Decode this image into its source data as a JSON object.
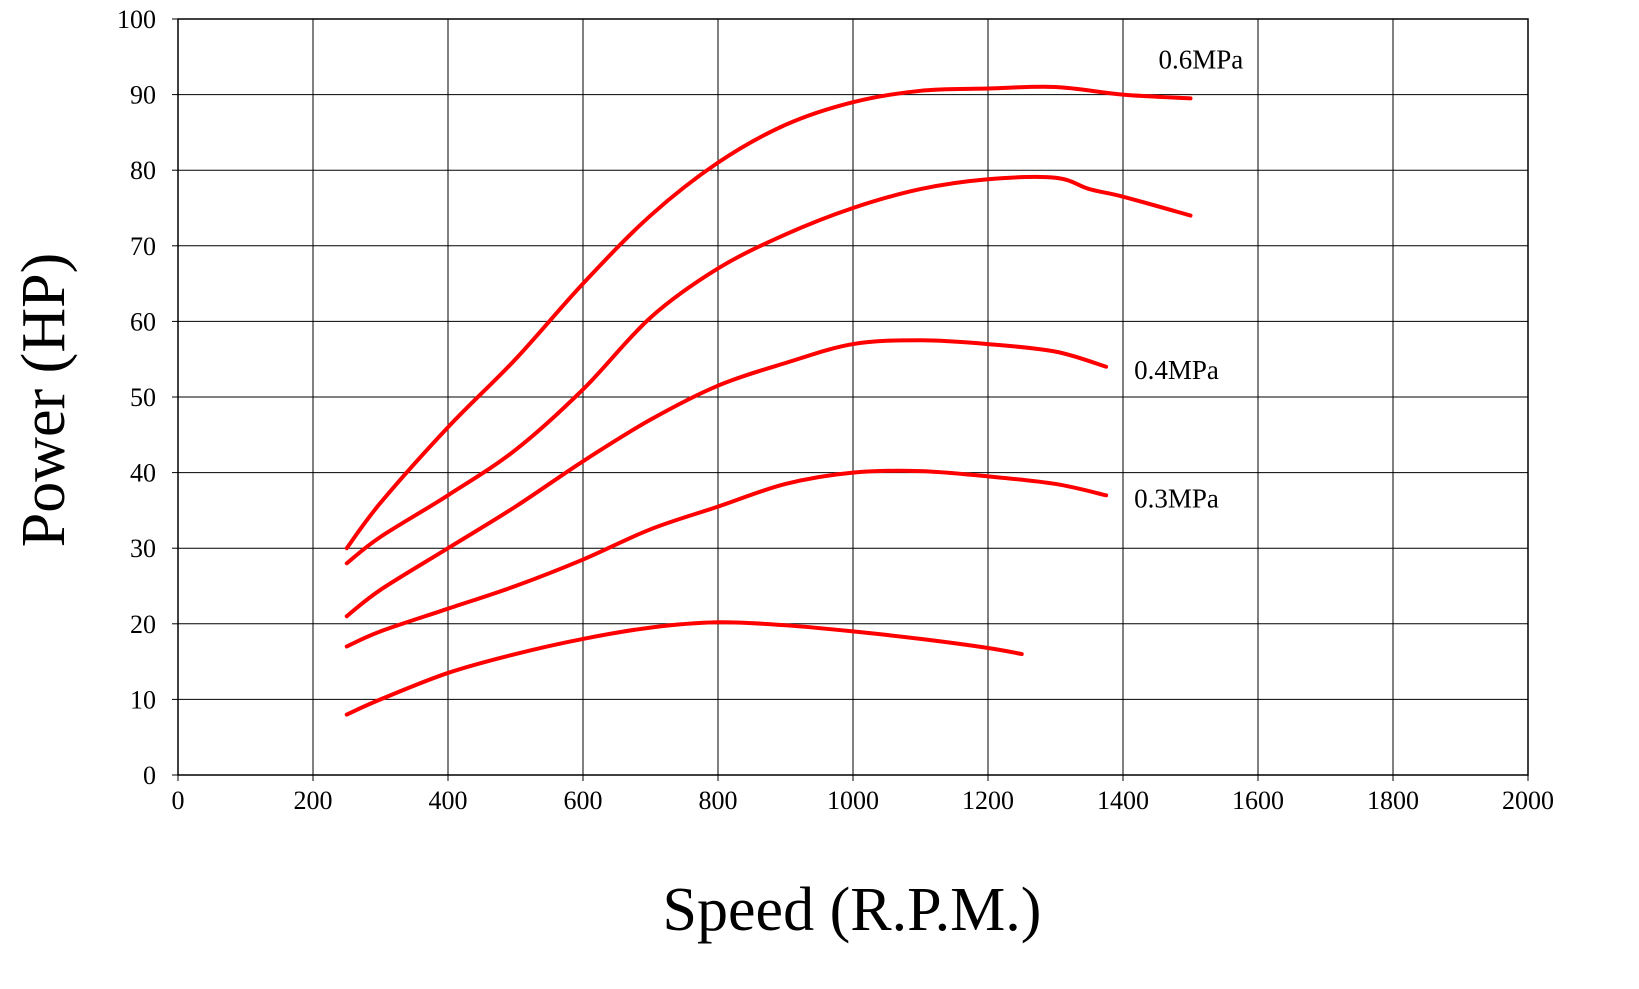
{
  "chart_data": {
    "type": "line",
    "title": "",
    "xlabel": "Speed (R.P.M.)",
    "ylabel": "Power (HP)",
    "xlim": [
      0,
      2000
    ],
    "ylim": [
      0,
      100
    ],
    "xticks": [
      "0",
      "200",
      "400",
      "600",
      "800",
      "1000",
      "1200",
      "1400",
      "1600",
      "1800",
      "2000"
    ],
    "yticks": [
      "0",
      "10",
      "20",
      "30",
      "40",
      "50",
      "60",
      "70",
      "80",
      "90",
      "100"
    ],
    "grid": true,
    "line_color": "#ff0000",
    "series": [
      {
        "label": "0.6MPa",
        "x": [
          250,
          300,
          400,
          500,
          600,
          700,
          800,
          900,
          1000,
          1100,
          1200,
          1300,
          1400,
          1500
        ],
        "y": [
          30,
          36,
          46,
          55,
          65,
          74,
          81,
          86,
          89,
          90.5,
          90.8,
          91,
          90,
          89.5
        ]
      },
      {
        "label": "",
        "x": [
          250,
          300,
          400,
          500,
          600,
          700,
          800,
          900,
          1000,
          1100,
          1200,
          1300,
          1350,
          1400,
          1500
        ],
        "y": [
          28,
          31.5,
          37,
          43,
          51,
          60.5,
          67,
          71.5,
          75,
          77.5,
          78.8,
          79,
          77.5,
          76.5,
          74
        ]
      },
      {
        "label": "0.4MPa",
        "x": [
          250,
          300,
          400,
          500,
          600,
          700,
          800,
          900,
          1000,
          1100,
          1200,
          1300,
          1375
        ],
        "y": [
          21,
          24.5,
          30,
          35.5,
          41.5,
          47,
          51.5,
          54.5,
          57,
          57.5,
          57,
          56,
          54
        ]
      },
      {
        "label": "0.3MPa",
        "x": [
          250,
          300,
          400,
          500,
          600,
          700,
          800,
          900,
          1000,
          1100,
          1200,
          1300,
          1375
        ],
        "y": [
          17,
          19,
          22,
          25,
          28.5,
          32.5,
          35.5,
          38.5,
          40,
          40.2,
          39.5,
          38.5,
          37
        ]
      },
      {
        "label": "",
        "x": [
          250,
          300,
          400,
          500,
          600,
          700,
          800,
          900,
          1000,
          1100,
          1200,
          1250
        ],
        "y": [
          8,
          10,
          13.5,
          16,
          18,
          19.5,
          20.2,
          19.8,
          19,
          18,
          16.8,
          16
        ]
      }
    ]
  }
}
